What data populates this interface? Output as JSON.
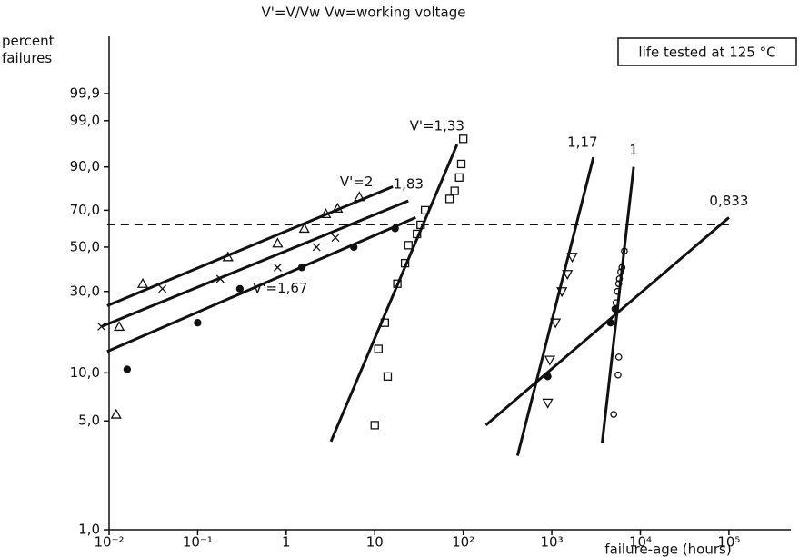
{
  "chart_data": {
    "type": "weibull-scatter",
    "title": "V'=V/Vw  Vw=working voltage",
    "annotation": "life tested at 125 °C",
    "ylabel": "percent failures",
    "xlabel": "failure-age   (hours)",
    "xscale": "log",
    "yscale": "weibull",
    "xlim": [
      0.01,
      500000
    ],
    "ylim": [
      1.0,
      99.9
    ],
    "xticks": [
      {
        "value": 0.01,
        "label": "10⁻²"
      },
      {
        "value": 0.1,
        "label": "10⁻¹"
      },
      1,
      10,
      {
        "value": 100,
        "label": "10²"
      },
      {
        "value": 1000,
        "label": "10³"
      },
      {
        "value": 10000,
        "label": "10⁴"
      },
      {
        "value": 100000,
        "label": "10⁵"
      }
    ],
    "yticks": [
      {
        "value": 1.0,
        "label": "1,0"
      },
      {
        "value": 5.0,
        "label": "5,0"
      },
      {
        "value": 10.0,
        "label": "10,0"
      },
      {
        "value": 30.0,
        "label": "30,0"
      },
      {
        "value": 50.0,
        "label": "50,0"
      },
      {
        "value": 70.0,
        "label": "70,0"
      },
      {
        "value": 90.0,
        "label": "90,0"
      },
      {
        "value": 99.0,
        "label": "99,0"
      },
      {
        "value": 99.9,
        "label": "99,9"
      }
    ],
    "color": "#111111",
    "reference_line": {
      "y": 62,
      "x": [
        0.0095,
        100000
      ],
      "style": "dashed"
    },
    "series": [
      {
        "name": "V'=2",
        "marker": "triangle",
        "x": [
          0.012,
          0.013,
          0.024,
          0.22,
          0.8,
          1.6,
          2.8,
          3.8,
          6.7
        ],
        "y": [
          5.5,
          19,
          33,
          45,
          52,
          60,
          68,
          71,
          77
        ],
        "fit": {
          "x": [
            0.0095,
            16
          ],
          "y": [
            25,
            82
          ]
        }
      },
      {
        "name": "1,83",
        "marker": "cross",
        "x": [
          0.0082,
          0.04,
          0.18,
          0.8,
          2.2,
          3.6
        ],
        "y": [
          19,
          31,
          35,
          40,
          50,
          55
        ],
        "fit": {
          "x": [
            0.0082,
            24
          ],
          "y": [
            19,
            75
          ]
        }
      },
      {
        "name": "V'=1,67",
        "marker": "dot",
        "x": [
          0.016,
          0.1,
          0.3,
          1.5,
          5.8,
          17
        ],
        "y": [
          10.5,
          20,
          31,
          40,
          50,
          60
        ],
        "fit": {
          "x": [
            0.0095,
            29
          ],
          "y": [
            13.5,
            66
          ]
        }
      },
      {
        "name": "V'=1,33",
        "marker": "square",
        "x": [
          10,
          14,
          11,
          13,
          18,
          22,
          24,
          30,
          33,
          37,
          70,
          80,
          90,
          95,
          100
        ],
        "y": [
          4.7,
          9.5,
          14,
          20,
          33,
          42,
          51,
          57,
          62,
          70,
          76,
          80,
          86,
          91,
          97
        ],
        "fit": {
          "x": [
            3.2,
            85
          ],
          "y": [
            3.7,
            96
          ]
        }
      },
      {
        "name": "1,17",
        "marker": "inverted-triangle",
        "x": [
          900,
          950,
          1100,
          1300,
          1500,
          1700
        ],
        "y": [
          6.5,
          12,
          20,
          30,
          37,
          45
        ],
        "fit": {
          "x": [
            410,
            2950
          ],
          "y": [
            3,
            93
          ]
        }
      },
      {
        "name": "1",
        "marker": "circle",
        "x": [
          5000,
          5600,
          5700,
          5300,
          5500,
          5700,
          5800,
          6000,
          6200,
          6600
        ],
        "y": [
          5.5,
          9.7,
          12.5,
          26,
          30,
          33,
          35,
          38,
          40,
          48
        ],
        "fit": {
          "x": [
            3700,
            8400
          ],
          "y": [
            3.6,
            90
          ]
        }
      },
      {
        "name": "0,833",
        "marker": "dot",
        "x": [
          900,
          4600,
          5200
        ],
        "y": [
          9.5,
          20,
          24
        ],
        "fit": {
          "x": [
            180,
            100000
          ],
          "y": [
            4.7,
            66
          ]
        }
      }
    ]
  }
}
